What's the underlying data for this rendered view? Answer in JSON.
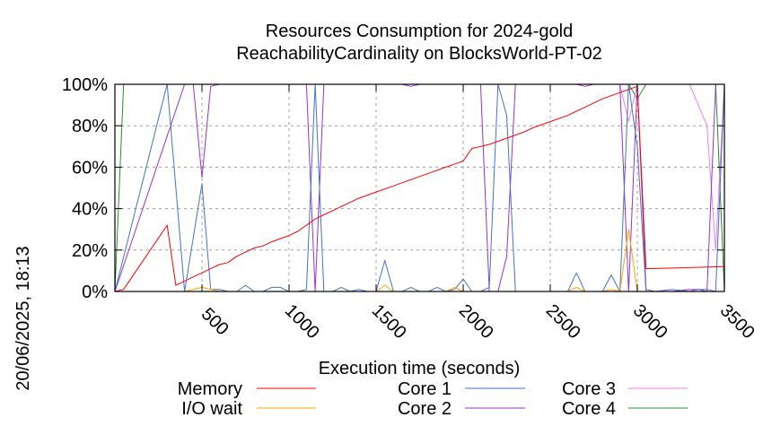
{
  "chart_data": {
    "type": "line",
    "title_lines": [
      "Resources Consumption for 2024-gold",
      "ReachabilityCardinality on BlocksWorld-PT-02"
    ],
    "xlabel": "Execution time (seconds)",
    "ylabel": "",
    "side_label": "20/06/2025, 18:13",
    "xlim": [
      0,
      3500
    ],
    "ylim": [
      0,
      100
    ],
    "x_ticks": [
      500,
      1000,
      1500,
      2000,
      2500,
      3000,
      3500
    ],
    "y_ticks": [
      0,
      20,
      40,
      60,
      80,
      100
    ],
    "y_tick_labels": [
      "0%",
      "20%",
      "40%",
      "60%",
      "80%",
      "100%"
    ],
    "grid": true,
    "legend_position": "bottom",
    "series": [
      {
        "name": "Memory",
        "color": "#ff0000",
        "x": [
          0,
          50,
          300,
          350,
          400,
          500,
          550,
          600,
          650,
          700,
          750,
          800,
          850,
          900,
          1000,
          1050,
          1100,
          1150,
          1200,
          1300,
          1400,
          1500,
          1600,
          1700,
          1800,
          1900,
          2000,
          2050,
          2100,
          2150,
          2250,
          2350,
          2400,
          2500,
          2600,
          2700,
          2800,
          2900,
          3000,
          3050,
          3500
        ],
        "y": [
          0,
          1,
          32,
          3,
          5,
          9,
          11,
          13,
          14,
          17,
          19,
          21,
          22,
          24,
          27,
          29,
          32,
          35,
          37,
          41,
          45,
          48,
          51,
          54,
          57,
          60,
          63,
          69,
          70,
          71,
          74,
          77,
          79,
          82,
          85,
          89,
          93,
          96,
          99,
          11,
          12
        ]
      },
      {
        "name": "I/O wait",
        "color": "#ffa500",
        "x": [
          0,
          400,
          500,
          600,
          1400,
          1500,
          1550,
          1600,
          1900,
          1950,
          2000,
          2600,
          2650,
          2700,
          2800,
          2850,
          2900,
          2950,
          3000,
          3050,
          3500
        ],
        "y": [
          0,
          0,
          2,
          0,
          0,
          0,
          3,
          0,
          0,
          2,
          0,
          0,
          2,
          0,
          0,
          1,
          0,
          30,
          0,
          0,
          0
        ]
      },
      {
        "name": "Core 1",
        "color": "#4472c4",
        "x": [
          0,
          300,
          400,
          500,
          550,
          600,
          650,
          700,
          750,
          800,
          850,
          900,
          950,
          1000,
          1050,
          1100,
          1150,
          1200,
          1250,
          1300,
          1350,
          1400,
          1450,
          1500,
          1550,
          1600,
          1650,
          1700,
          1750,
          1800,
          1850,
          1900,
          1950,
          2000,
          2050,
          2100,
          2150,
          2200,
          2250,
          2300,
          2350,
          2600,
          2650,
          2700,
          2800,
          2850,
          2900,
          2950,
          3000,
          3050,
          3100,
          3200,
          3300,
          3350,
          3400,
          3450,
          3500
        ],
        "y": [
          0,
          100,
          0,
          52,
          1,
          1,
          0,
          0,
          3,
          0,
          0,
          2,
          2,
          0,
          0,
          1,
          100,
          0,
          0,
          2,
          0,
          1,
          0,
          0,
          15,
          0,
          0,
          2,
          0,
          0,
          2,
          0,
          1,
          6,
          0,
          0,
          2,
          100,
          85,
          0,
          0,
          0,
          9,
          0,
          0,
          8,
          0,
          100,
          70,
          0,
          0,
          1,
          0,
          1,
          1,
          0,
          100
        ]
      },
      {
        "name": "Core 2",
        "color": "#9932cc",
        "x": [
          0,
          400,
          450,
          500,
          550,
          600,
          1100,
          1150,
          1200,
          1650,
          1700,
          1750,
          2000,
          2100,
          2150,
          2200,
          2250,
          2300,
          2650,
          2700,
          2750,
          2800,
          2900,
          2950,
          3000,
          3050,
          3100,
          3200,
          3300,
          3350,
          3400,
          3450,
          3500
        ],
        "y": [
          0,
          100,
          100,
          55,
          99,
          100,
          100,
          0,
          100,
          100,
          99,
          100,
          100,
          100,
          0,
          0,
          17,
          100,
          100,
          99,
          100,
          100,
          100,
          0,
          100,
          1,
          0,
          0,
          1,
          1,
          0,
          100,
          100
        ]
      },
      {
        "name": "Core 3",
        "color": "#ee82ee",
        "x": [
          0,
          2900,
          2950,
          3000,
          3050,
          3100,
          3200,
          3300,
          3400,
          3450,
          3500
        ],
        "y": [
          100,
          100,
          82,
          100,
          100,
          100,
          100,
          100,
          80,
          20,
          100
        ]
      },
      {
        "name": "Core 4",
        "color": "#2e8b2e",
        "x": [
          0,
          50,
          2950,
          3000,
          3050,
          3450,
          3500
        ],
        "y": [
          0,
          100,
          100,
          93,
          100,
          100,
          0
        ]
      }
    ]
  }
}
